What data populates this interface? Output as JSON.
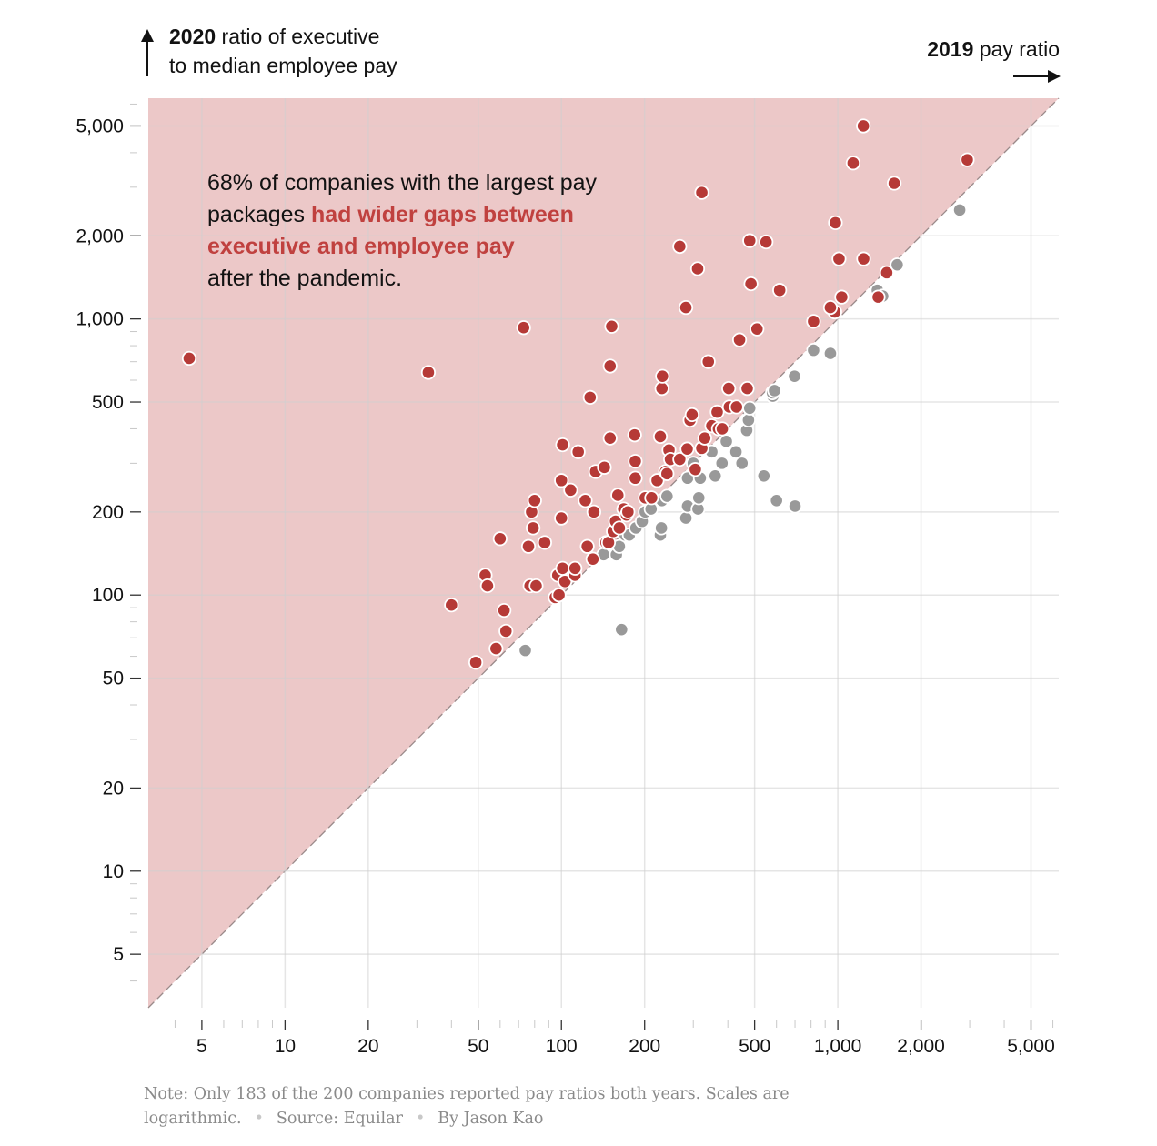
{
  "y_label": {
    "bold": "2020",
    "rest_line1": " ratio of executive",
    "line2": "to median employee pay"
  },
  "x_label": {
    "bold": "2019",
    "rest": " pay ratio"
  },
  "annotation": {
    "line1": "68% of companies with the largest pay",
    "line2_plain": "packages ",
    "highlight": "had wider gaps between executive and employee pay",
    "line4": "after the pandemic."
  },
  "note": {
    "text": "Note: Only 183 of the 200 companies reported pay ratios both years. Scales are logarithmic.",
    "source": "Source: Equilar",
    "byline": "By Jason Kao"
  },
  "colors": {
    "wider": "#b63a37",
    "narrower": "#999999",
    "region": "#ecc8c8"
  },
  "chart_data": {
    "type": "scatter",
    "xlabel": "2019 pay ratio",
    "ylabel": "2020 ratio of executive to median employee pay",
    "x_scale": "log",
    "y_scale": "log",
    "xlim": [
      3.2,
      6300
    ],
    "ylim": [
      3.2,
      6300
    ],
    "x_ticks": [
      5,
      10,
      20,
      50,
      100,
      200,
      500,
      1000,
      2000,
      5000
    ],
    "x_tick_labels": [
      "5",
      "10",
      "20",
      "50",
      "100",
      "200",
      "500",
      "1,000",
      "2,000",
      "5,000"
    ],
    "y_ticks": [
      5,
      10,
      20,
      50,
      100,
      200,
      500,
      1000,
      2000,
      5000
    ],
    "y_tick_labels": [
      "5",
      "10",
      "20",
      "50",
      "100",
      "200",
      "500",
      "1,000",
      "2,000",
      "5,000"
    ],
    "grid": true,
    "reference_line": "y = x",
    "series": [
      {
        "points": [
          [
            4.5,
            720
          ],
          [
            33,
            640
          ],
          [
            40,
            92
          ],
          [
            49,
            57
          ],
          [
            53,
            118
          ],
          [
            54,
            108
          ],
          [
            60,
            160
          ],
          [
            62,
            88
          ],
          [
            63,
            74
          ],
          [
            58,
            64
          ],
          [
            73,
            930
          ],
          [
            76,
            150
          ],
          [
            77,
            108
          ],
          [
            78,
            200
          ],
          [
            79,
            175
          ],
          [
            80,
            220
          ],
          [
            81,
            108
          ],
          [
            87,
            155
          ],
          [
            95,
            98
          ],
          [
            97,
            118
          ],
          [
            98,
            100
          ],
          [
            100,
            260
          ],
          [
            100,
            190
          ],
          [
            101,
            125
          ],
          [
            101,
            350
          ],
          [
            103,
            112
          ],
          [
            108,
            240
          ],
          [
            112,
            118
          ],
          [
            112,
            125
          ],
          [
            115,
            330
          ],
          [
            122,
            220
          ],
          [
            124,
            150
          ],
          [
            127,
            520
          ],
          [
            130,
            135
          ],
          [
            131,
            200
          ],
          [
            133,
            280
          ],
          [
            143,
            290
          ],
          [
            145,
            155
          ],
          [
            148,
            155
          ],
          [
            150,
            675
          ],
          [
            150,
            370
          ],
          [
            152,
            940
          ],
          [
            154,
            170
          ],
          [
            157,
            185
          ],
          [
            160,
            230
          ],
          [
            162,
            175
          ],
          [
            168,
            205
          ],
          [
            172,
            195
          ],
          [
            174,
            200
          ],
          [
            184,
            380
          ],
          [
            185,
            305
          ],
          [
            185,
            265
          ],
          [
            201,
            225
          ],
          [
            212,
            225
          ],
          [
            222,
            260
          ],
          [
            228,
            375
          ],
          [
            231,
            560
          ],
          [
            232,
            620
          ],
          [
            238,
            280
          ],
          [
            241,
            275
          ],
          [
            245,
            335
          ],
          [
            248,
            310
          ],
          [
            268,
            1830
          ],
          [
            268,
            310
          ],
          [
            282,
            1100
          ],
          [
            285,
            338
          ],
          [
            292,
            430
          ],
          [
            297,
            450
          ],
          [
            305,
            285
          ],
          [
            311,
            1520
          ],
          [
            322,
            2870
          ],
          [
            322,
            340
          ],
          [
            330,
            370
          ],
          [
            340,
            700
          ],
          [
            350,
            410
          ],
          [
            366,
            460
          ],
          [
            370,
            400
          ],
          [
            382,
            400
          ],
          [
            403,
            560
          ],
          [
            405,
            480
          ],
          [
            430,
            480
          ],
          [
            441,
            840
          ],
          [
            470,
            560
          ],
          [
            480,
            1920
          ],
          [
            485,
            1340
          ],
          [
            510,
            920
          ],
          [
            550,
            1900
          ],
          [
            616,
            1270
          ],
          [
            817,
            980
          ],
          [
            980,
            2230
          ],
          [
            1010,
            1650
          ],
          [
            1033,
            1200
          ],
          [
            1136,
            3670
          ],
          [
            1237,
            5000
          ],
          [
            1240,
            1650
          ],
          [
            1400,
            1200
          ],
          [
            1503,
            1470
          ],
          [
            1600,
            3100
          ],
          [
            2940,
            3770
          ],
          [
            975,
            1060
          ],
          [
            940,
            1100
          ]
        ]
      },
      {
        "points": [
          [
            74,
            63
          ],
          [
            142,
            140
          ],
          [
            158,
            140
          ],
          [
            162,
            150
          ],
          [
            165,
            75
          ],
          [
            170,
            165
          ],
          [
            176,
            165
          ],
          [
            186,
            175
          ],
          [
            196,
            185
          ],
          [
            201,
            200
          ],
          [
            211,
            205
          ],
          [
            228,
            165
          ],
          [
            230,
            175
          ],
          [
            231,
            220
          ],
          [
            241,
            228
          ],
          [
            282,
            190
          ],
          [
            286,
            210
          ],
          [
            286,
            265
          ],
          [
            300,
            300
          ],
          [
            312,
            205
          ],
          [
            314,
            225
          ],
          [
            318,
            265
          ],
          [
            350,
            330
          ],
          [
            360,
            270
          ],
          [
            381,
            300
          ],
          [
            395,
            360
          ],
          [
            428,
            330
          ],
          [
            450,
            300
          ],
          [
            468,
            395
          ],
          [
            475,
            430
          ],
          [
            480,
            475
          ],
          [
            540,
            270
          ],
          [
            582,
            525
          ],
          [
            580,
            540
          ],
          [
            590,
            550
          ],
          [
            600,
            220
          ],
          [
            697,
            620
          ],
          [
            700,
            210
          ],
          [
            817,
            770
          ],
          [
            940,
            750
          ],
          [
            1390,
            1270
          ],
          [
            1453,
            1210
          ],
          [
            1640,
            1570
          ],
          [
            2760,
            2480
          ]
        ]
      }
    ]
  }
}
